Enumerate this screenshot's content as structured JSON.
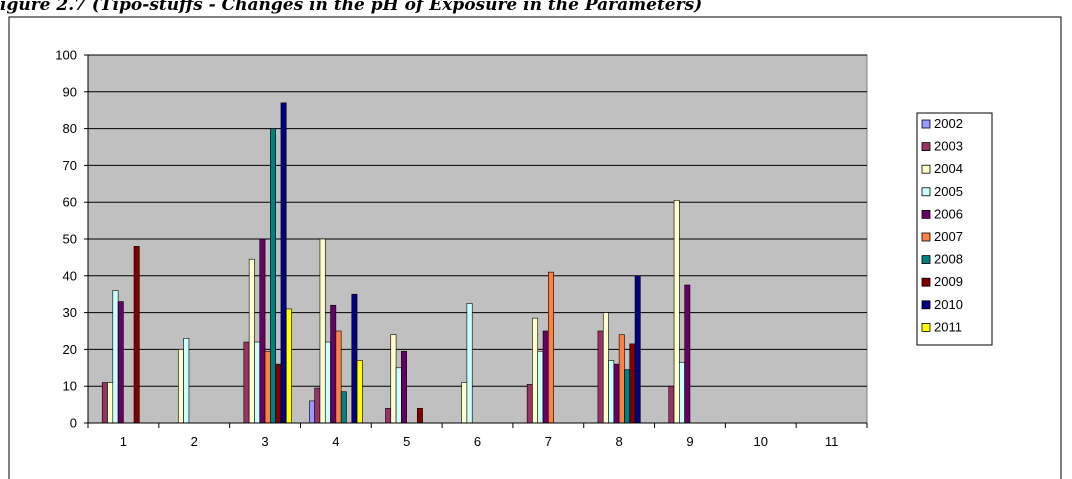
{
  "caption": "igure 2.7 (Tipo-stuffs - Changes in the pH of Exposure in the Parameters)",
  "chart_data": {
    "type": "bar",
    "categories": [
      "1",
      "2",
      "3",
      "4",
      "5",
      "6",
      "7",
      "8",
      "9",
      "10",
      "11"
    ],
    "ylim": [
      0,
      100
    ],
    "yticks": [
      0,
      10,
      20,
      30,
      40,
      50,
      60,
      70,
      80,
      90,
      100
    ],
    "grid": true,
    "legend_position": "right",
    "plot_background": "#c0c0c0",
    "series": [
      {
        "name": "2002",
        "color": "#9999ff",
        "values": [
          0,
          0,
          0,
          6,
          0,
          0,
          0,
          0,
          0,
          0,
          0
        ]
      },
      {
        "name": "2003",
        "color": "#993366",
        "values": [
          11,
          0,
          22,
          9.5,
          4,
          0,
          10.5,
          25,
          10,
          0,
          0
        ]
      },
      {
        "name": "2004",
        "color": "#ffffcc",
        "values": [
          11,
          20,
          44.5,
          50,
          24,
          11,
          28.5,
          30,
          60.5,
          0,
          0
        ]
      },
      {
        "name": "2005",
        "color": "#ccffff",
        "values": [
          36,
          23,
          22,
          22,
          15,
          32.5,
          19.5,
          17,
          16.5,
          0,
          0
        ]
      },
      {
        "name": "2006",
        "color": "#660066",
        "values": [
          33,
          0,
          50,
          32,
          19.5,
          0,
          25,
          16,
          37.5,
          0,
          0
        ]
      },
      {
        "name": "2007",
        "color": "#ff8040",
        "values": [
          0,
          0,
          19.5,
          25,
          0,
          0,
          41,
          24,
          0,
          0,
          0
        ]
      },
      {
        "name": "2008",
        "color": "#008080",
        "values": [
          0,
          0,
          80,
          8.5,
          0,
          0,
          0,
          14.5,
          0,
          0,
          0
        ]
      },
      {
        "name": "2009",
        "color": "#800000",
        "values": [
          48,
          0,
          16,
          0,
          4,
          0,
          0,
          21.5,
          0,
          0,
          0
        ]
      },
      {
        "name": "2010",
        "color": "#000080",
        "values": [
          0,
          0,
          87,
          35,
          0,
          0,
          0,
          40,
          0,
          0,
          0
        ]
      },
      {
        "name": "2011",
        "color": "#ffff00",
        "values": [
          0,
          0,
          31,
          17,
          0,
          0,
          0,
          0,
          0,
          0,
          0
        ]
      }
    ]
  }
}
